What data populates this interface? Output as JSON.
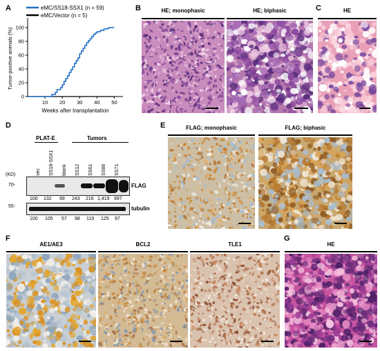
{
  "panels": {
    "A": "A",
    "B": "B",
    "C": "C",
    "D": "D",
    "E": "E",
    "F": "F",
    "G": "G"
  },
  "chart_data": {
    "type": "line",
    "xlabel": "Weeks after transplantation",
    "ylabel": "Tumor-positive animals (%)",
    "xlim": [
      0,
      55
    ],
    "ylim": [
      0,
      110
    ],
    "xticks": [
      "10",
      "20",
      "30",
      "40",
      "50"
    ],
    "yticks": [
      "0",
      "20",
      "40",
      "60",
      "80",
      "100"
    ],
    "legend_placement": "top",
    "series": [
      {
        "name": "eMC/SS18-SSX1 (n = 59)",
        "color": "#1f6fc5",
        "step": true,
        "x": [
          0,
          13,
          14,
          16,
          17,
          19,
          20,
          21,
          22,
          23,
          24,
          25,
          26,
          27,
          28,
          29,
          30,
          31,
          32,
          33,
          34,
          35,
          36,
          37,
          38,
          39,
          40,
          42,
          44,
          46,
          47,
          50
        ],
        "y": [
          0,
          0,
          3,
          6,
          10,
          13,
          17,
          22,
          26,
          30,
          35,
          39,
          43,
          48,
          52,
          56,
          62,
          66,
          70,
          74,
          78,
          81,
          84,
          87,
          90,
          92,
          94,
          96,
          98,
          99,
          100,
          100
        ]
      },
      {
        "name": "eMC/Vector (n = 5)",
        "color": "#000000",
        "step": true,
        "x": [
          0,
          50
        ],
        "y": [
          0,
          0
        ]
      }
    ]
  },
  "B": {
    "title_left": "HE; monophasic",
    "title_right": "HE; biphasic"
  },
  "C": {
    "title": "HE"
  },
  "D": {
    "group_platE": "PLAT-E",
    "group_tumors": "Tumors",
    "kd_label": "(KD)",
    "marker_70": "70-",
    "marker_55": "55-",
    "lanes": [
      "vec",
      "SS18-SSX1",
      "blank",
      "SS12",
      "SS61",
      "SS66",
      "SS71"
    ],
    "flag_label": "FLAG",
    "tubulin_label": "tubulin",
    "flag_values": [
      "100",
      "132",
      "99",
      "243",
      "216",
      "1,419",
      "997"
    ],
    "tubulin_values": [
      "100",
      "105",
      "57",
      "98",
      "119",
      "125",
      "97"
    ]
  },
  "E": {
    "title_left": "FLAG; monophasic",
    "title_right": "FLAG; biphasic"
  },
  "F": {
    "title_1": "AE1/AE3",
    "title_2": "BCL2",
    "title_3": "TLE1"
  },
  "G": {
    "title": "HE"
  },
  "colors": {
    "he_pink": "#c77fb4",
    "he_purple": "#8a4d99",
    "ihc_blue": "#b9cfe0",
    "ihc_brown": "#d49a4a"
  }
}
